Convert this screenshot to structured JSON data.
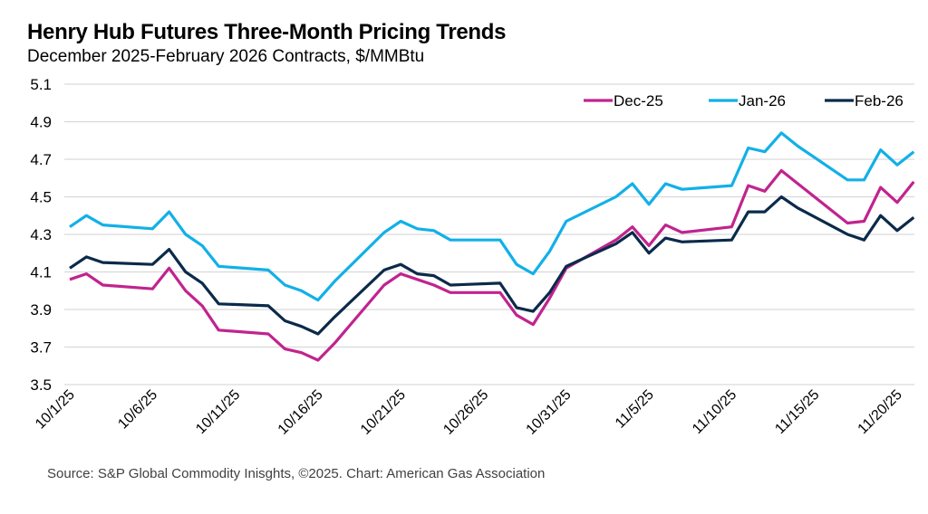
{
  "chart_data": {
    "type": "line",
    "title": "Henry Hub Futures Three-Month Pricing Trends",
    "subtitle": "December 2025-February 2026 Contracts, $/MMBtu",
    "source": "Source: S&P Global Commodity Inisghts, ©2025. Chart: American Gas Association",
    "xlabel": "",
    "ylabel": "",
    "ylim": [
      3.5,
      5.1
    ],
    "yticks": [
      "5.1",
      "4.9",
      "4.7",
      "4.5",
      "4.3",
      "4.1",
      "3.9",
      "3.7",
      "3.5"
    ],
    "ytick_values": [
      5.1,
      4.9,
      4.7,
      4.5,
      4.3,
      4.1,
      3.9,
      3.7,
      3.5
    ],
    "xtick_labels": [
      "10/1/25",
      "10/6/25",
      "10/11/25",
      "10/16/25",
      "10/21/25",
      "10/26/25",
      "10/31/25",
      "11/5/25",
      "11/10/25",
      "11/15/25",
      "11/20/25"
    ],
    "xtick_days": [
      0,
      5,
      10,
      15,
      20,
      25,
      30,
      35,
      40,
      45,
      50
    ],
    "x_days_range": [
      0,
      51
    ],
    "grid": true,
    "legend_position": "top-right",
    "x_days": [
      0,
      1,
      2,
      5,
      6,
      7,
      8,
      9,
      12,
      13,
      14,
      15,
      16,
      19,
      20,
      21,
      22,
      23,
      26,
      27,
      28,
      29,
      30,
      33,
      34,
      35,
      36,
      37,
      40,
      41,
      42,
      43,
      44,
      47,
      48,
      49,
      50,
      51
    ],
    "x_dates": [
      "10/1/25",
      "10/2/25",
      "10/3/25",
      "10/6/25",
      "10/7/25",
      "10/8/25",
      "10/9/25",
      "10/10/25",
      "10/13/25",
      "10/14/25",
      "10/15/25",
      "10/16/25",
      "10/17/25",
      "10/20/25",
      "10/21/25",
      "10/22/25",
      "10/23/25",
      "10/24/25",
      "10/27/25",
      "10/28/25",
      "10/29/25",
      "10/30/25",
      "10/31/25",
      "11/3/25",
      "11/4/25",
      "11/5/25",
      "11/6/25",
      "11/7/25",
      "11/10/25",
      "11/11/25",
      "11/12/25",
      "11/13/25",
      "11/14/25",
      "11/17/25",
      "11/18/25",
      "11/19/25",
      "11/20/25",
      "11/21/25"
    ],
    "series": [
      {
        "name": "Dec-25",
        "color": "#C0248E",
        "values": [
          4.06,
          4.09,
          4.03,
          4.01,
          4.12,
          4.0,
          3.92,
          3.79,
          3.77,
          3.69,
          3.67,
          3.63,
          3.72,
          4.03,
          4.09,
          4.06,
          4.03,
          3.99,
          3.99,
          3.87,
          3.82,
          3.96,
          4.12,
          4.27,
          4.34,
          4.24,
          4.35,
          4.31,
          4.34,
          4.56,
          4.53,
          4.64,
          4.57,
          4.36,
          4.37,
          4.55,
          4.47,
          4.58
        ]
      },
      {
        "name": "Jan-26",
        "color": "#12B0E8",
        "values": [
          4.34,
          4.4,
          4.35,
          4.33,
          4.42,
          4.3,
          4.24,
          4.13,
          4.11,
          4.03,
          4.0,
          3.95,
          4.05,
          4.31,
          4.37,
          4.33,
          4.32,
          4.27,
          4.27,
          4.14,
          4.09,
          4.21,
          4.37,
          4.5,
          4.57,
          4.46,
          4.57,
          4.54,
          4.56,
          4.76,
          4.74,
          4.84,
          4.77,
          4.59,
          4.59,
          4.75,
          4.67,
          4.74
        ]
      },
      {
        "name": "Feb-26",
        "color": "#0B2A4A",
        "values": [
          4.12,
          4.18,
          4.15,
          4.14,
          4.22,
          4.1,
          4.04,
          3.93,
          3.92,
          3.84,
          3.81,
          3.77,
          3.86,
          4.11,
          4.14,
          4.09,
          4.08,
          4.03,
          4.04,
          3.91,
          3.89,
          3.99,
          4.13,
          4.25,
          4.31,
          4.2,
          4.28,
          4.26,
          4.27,
          4.42,
          4.42,
          4.5,
          4.44,
          4.3,
          4.27,
          4.4,
          4.32,
          4.39
        ]
      }
    ]
  }
}
